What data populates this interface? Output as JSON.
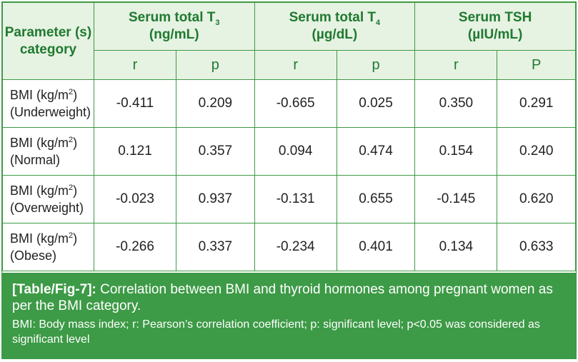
{
  "header": {
    "parameter": "Parameter (s) category",
    "t3": {
      "main": "Serum total T",
      "sub": "3",
      "unit": "(ng/mL)"
    },
    "t4": {
      "main": "Serum total T",
      "sub": "4",
      "unit": "(µg/dL)"
    },
    "tsh": {
      "main": "Serum TSH",
      "unit": "(µIU/mL)"
    },
    "sub_labels": [
      "r",
      "p",
      "r",
      "p",
      "r",
      "P"
    ]
  },
  "rows": [
    {
      "label_pre": "BMI (kg/m",
      "label_sup": "2",
      "label_post": ")",
      "category": "(Underweight)",
      "values": [
        "-0.411",
        "0.209",
        "-0.665",
        "0.025",
        "0.350",
        "0.291"
      ]
    },
    {
      "label_pre": "BMI (kg/m",
      "label_sup": "2",
      "label_post": ")",
      "category": "(Normal)",
      "values": [
        "0.121",
        "0.357",
        "0.094",
        "0.474",
        "0.154",
        "0.240"
      ]
    },
    {
      "label_pre": "BMI (kg/m",
      "label_sup": "2",
      "label_post": ")",
      "category": "(Overweight)",
      "values": [
        "-0.023",
        "0.937",
        "-0.131",
        "0.655",
        "-0.145",
        "0.620"
      ]
    },
    {
      "label_pre": "BMI (kg/m",
      "label_sup": "2",
      "label_post": ")",
      "category": "(Obese)",
      "values": [
        "-0.266",
        "0.337",
        "-0.234",
        "0.401",
        "0.134",
        "0.633"
      ]
    }
  ],
  "caption": {
    "tag": "[Table/Fig-7]:",
    "text": " Correlation between BMI and thyroid hormones among pregnant women as per the BMI category.",
    "note": "BMI: Body mass index; r: Pearson’s correlation coefficient; p: significant level; p<0.05 was considered as significant level"
  },
  "colors": {
    "border": "#3d9a46",
    "header_bg": "#e6f2e2",
    "header_text": "#1f7a30",
    "caption_bg": "#3d9a46"
  }
}
